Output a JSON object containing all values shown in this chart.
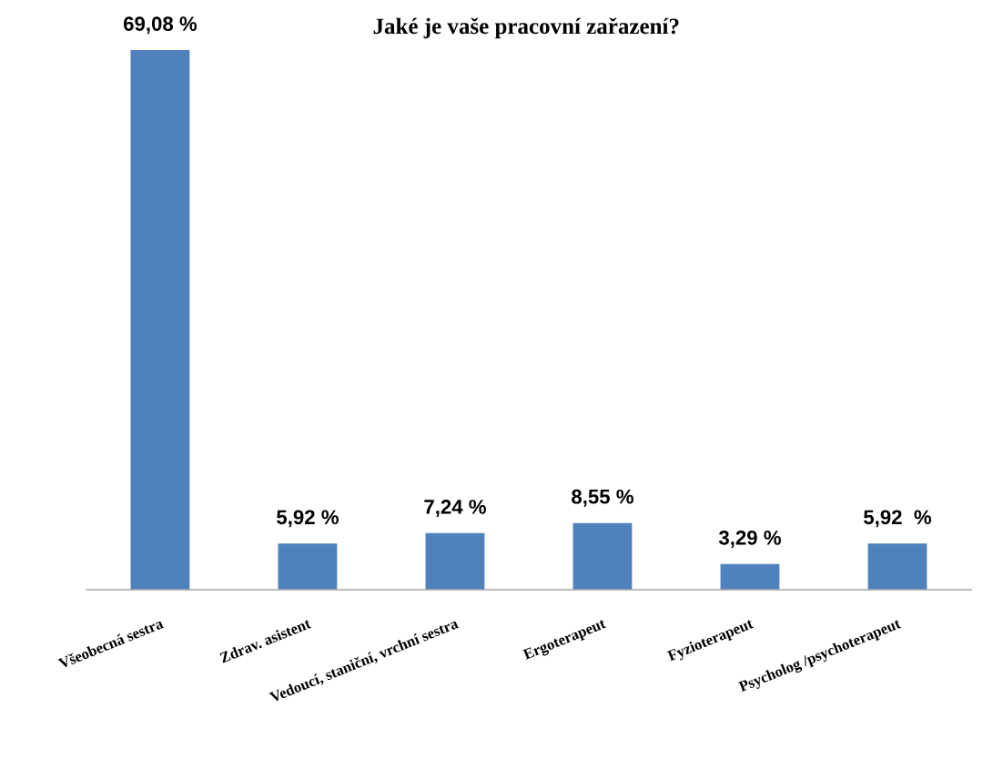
{
  "chart_data": {
    "type": "bar",
    "title": "Jaké je vaše pracovní zařazení?",
    "categories": [
      "Všeobecná sestra",
      "Zdrav. asistent",
      "Vedoucí, staniční, vrchní sestra",
      "Ergoterapeut",
      "Fyzioterapeut",
      "Psycholog /psychoterapeut"
    ],
    "values": [
      69.08,
      5.92,
      7.24,
      8.55,
      3.29,
      5.92
    ],
    "value_labels": [
      "69,08 %",
      "5,92 %",
      "7,24 %",
      "8,55 %",
      "3,29 %",
      "5,92  %"
    ],
    "color": "#4f81bd",
    "tick_labels": "x",
    "grid": false,
    "legend": false
  }
}
